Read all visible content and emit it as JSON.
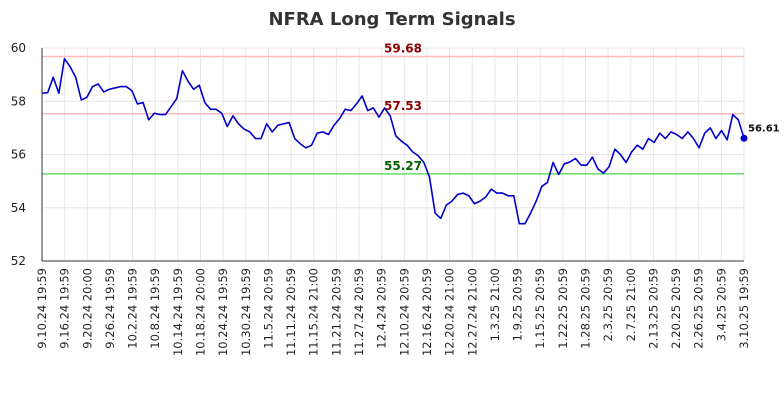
{
  "chart_data": {
    "type": "line",
    "title": "NFRA Long Term Signals",
    "xlabel": "",
    "ylabel": "",
    "ylim": [
      52,
      60
    ],
    "yticks": [
      52,
      54,
      56,
      58,
      60
    ],
    "grid": true,
    "colors": {
      "line": "#0000cc",
      "upper": "#ffbbbb",
      "middle": "#ffbbbb",
      "lower": "#66dd66",
      "upper_label": "#8b0000",
      "middle_label": "#8b0000",
      "lower_label": "#006400"
    },
    "x_tick_labels": [
      "9.10.24 19:59",
      "9.16.24 19:59",
      "9.20.24 20:00",
      "9.26.24 19:59",
      "10.2.24 19:59",
      "10.8.24 19:59",
      "10.14.24 19:59",
      "10.18.24 20:00",
      "10.24.24 19:59",
      "10.30.24 19:59",
      "11.5.24 20:59",
      "11.11.24 20:59",
      "11.15.24 21:00",
      "11.21.24 20:59",
      "11.27.24 20:59",
      "12.4.24 20:59",
      "12.10.24 20:59",
      "12.16.24 20:59",
      "12.20.24 21:00",
      "12.27.24 21:00",
      "1.3.25 21:00",
      "1.9.25 20:59",
      "1.15.25 20:59",
      "1.22.25 20:59",
      "1.28.25 20:59",
      "2.3.25 20:59",
      "2.7.25 21:00",
      "2.13.25 20:59",
      "2.20.25 20:59",
      "2.26.25 20:59",
      "3.4.25 20:59",
      "3.10.25 19:59"
    ],
    "reference_lines": [
      {
        "label": "59.68",
        "value": 59.68
      },
      {
        "label": "57.53",
        "value": 57.53
      },
      {
        "label": "55.27",
        "value": 55.27
      }
    ],
    "last_point_label": "56.61",
    "series": [
      {
        "values": [
          58.3,
          58.32,
          58.9,
          58.3,
          59.6,
          59.3,
          58.9,
          58.05,
          58.15,
          58.55,
          58.65,
          58.35,
          58.45,
          58.5,
          58.55,
          58.55,
          58.4,
          57.9,
          57.95,
          57.3,
          57.55,
          57.5,
          57.5,
          57.8,
          58.1,
          59.15,
          58.75,
          58.45,
          58.6,
          57.95,
          57.7,
          57.7,
          57.55,
          57.05,
          57.45,
          57.15,
          56.95,
          56.85,
          56.6,
          56.6,
          57.15,
          56.85,
          57.1,
          57.15,
          57.2,
          56.6,
          56.4,
          56.25,
          56.35,
          56.8,
          56.85,
          56.75,
          57.1,
          57.35,
          57.7,
          57.65,
          57.9,
          58.2,
          57.65,
          57.75,
          57.4,
          57.75,
          57.45,
          56.7,
          56.5,
          56.35,
          56.1,
          55.95,
          55.7,
          55.15,
          53.8,
          53.6,
          54.1,
          54.25,
          54.5,
          54.55,
          54.45,
          54.15,
          54.25,
          54.4,
          54.7,
          54.55,
          54.55,
          54.45,
          54.45,
          53.4,
          53.4,
          53.8,
          54.25,
          54.8,
          54.95,
          55.7,
          55.25,
          55.65,
          55.72,
          55.85,
          55.6,
          55.6,
          55.9,
          55.45,
          55.3,
          55.55,
          56.2,
          56.0,
          55.7,
          56.1,
          56.35,
          56.2,
          56.6,
          56.45,
          56.8,
          56.6,
          56.85,
          56.75,
          56.6,
          56.85,
          56.6,
          56.25,
          56.8,
          57.0,
          56.6,
          56.9,
          56.55,
          57.5,
          57.3,
          56.61
        ]
      }
    ]
  }
}
